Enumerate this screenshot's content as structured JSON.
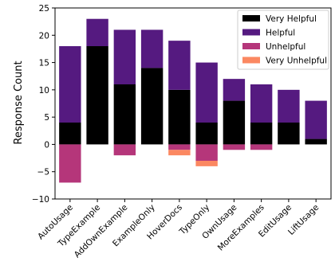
{
  "chart_data": {
    "type": "bar",
    "stacked": true,
    "title": "",
    "xlabel": "",
    "ylabel": "Response Count",
    "ylim": [
      -10,
      25
    ],
    "yticks": [
      -10,
      -5,
      0,
      5,
      10,
      15,
      20,
      25
    ],
    "grid": false,
    "legend_position": "top-right",
    "categories": [
      "AutoUsage",
      "TypeExample",
      "AddOwnExample",
      "ExampleOnly",
      "HoverDocs",
      "TypeOnly",
      "OwnUsage",
      "MoreExamples",
      "EditUsage",
      "LiftUsage"
    ],
    "series": [
      {
        "name": "Very Helpful",
        "color": "#000000",
        "values": [
          4,
          18,
          11,
          14,
          10,
          4,
          8,
          4,
          4,
          1
        ]
      },
      {
        "name": "Helpful",
        "color": "#551a80",
        "values": [
          14,
          5,
          10,
          7,
          9,
          11,
          4,
          7,
          6,
          7
        ]
      },
      {
        "name": "Unhelpful",
        "color": "#b5367a",
        "values": [
          -7,
          0,
          -2,
          0,
          -1,
          -3,
          -1,
          -1,
          0,
          0
        ]
      },
      {
        "name": "Very Unhelpful",
        "color": "#fb8861",
        "values": [
          0,
          0,
          0,
          0,
          -1,
          -1,
          0,
          0,
          0,
          0
        ]
      }
    ]
  }
}
